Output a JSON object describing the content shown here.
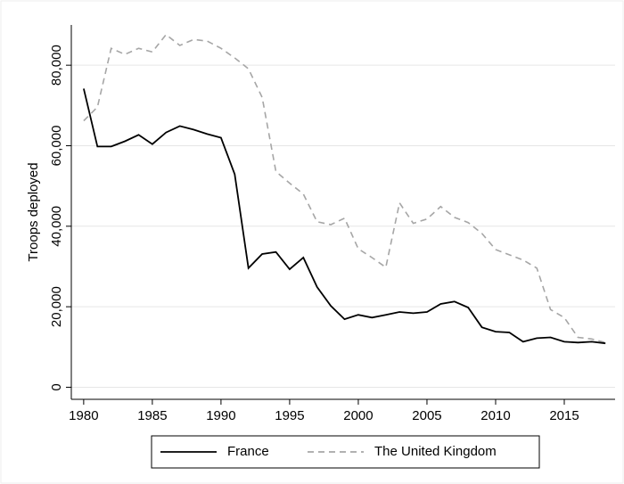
{
  "chart_data": {
    "type": "line",
    "y_label": "Troops deployed",
    "x": [
      1980,
      1981,
      1982,
      1983,
      1984,
      1985,
      1986,
      1987,
      1988,
      1989,
      1990,
      1991,
      1992,
      1993,
      1994,
      1995,
      1996,
      1997,
      1998,
      1999,
      2000,
      2001,
      2002,
      2003,
      2004,
      2005,
      2006,
      2007,
      2008,
      2009,
      2010,
      2011,
      2012,
      2013,
      2014,
      2015,
      2016,
      2017,
      2018
    ],
    "series": [
      {
        "name": "France",
        "color": "#000000",
        "dash": false,
        "values": [
          74200,
          59800,
          59800,
          61100,
          62700,
          60400,
          63300,
          64900,
          64000,
          62900,
          62000,
          52900,
          29600,
          33100,
          33600,
          29300,
          32200,
          24900,
          20200,
          16900,
          18000,
          17300,
          18000,
          18700,
          18400,
          18700,
          20700,
          21300,
          19800,
          14900,
          13800,
          13600,
          11300,
          12200,
          12400,
          11300,
          11100,
          11300,
          10900
        ]
      },
      {
        "name": "The United Kingdom",
        "color": "#a6a6a6",
        "dash": true,
        "values": [
          66200,
          69600,
          84200,
          82700,
          84200,
          83300,
          87600,
          84900,
          86400,
          86000,
          84200,
          81800,
          79100,
          72000,
          53600,
          50700,
          48000,
          41100,
          40400,
          42000,
          34400,
          32200,
          29800,
          45800,
          40700,
          41800,
          44900,
          42200,
          40900,
          38200,
          34200,
          32900,
          31600,
          29600,
          19300,
          17300,
          12400,
          12000,
          11100
        ]
      }
    ],
    "xlim": [
      1979.1,
      2018.7
    ],
    "xticks": [
      1980,
      1985,
      1990,
      1995,
      2000,
      2005,
      2010,
      2015
    ],
    "ylim": [
      -3000,
      90000
    ],
    "yticks": [
      0,
      {
        "value": 20000,
        "label": "20,000"
      },
      {
        "value": 40000,
        "label": "40,000"
      },
      {
        "value": 60000,
        "label": "60,000"
      },
      {
        "value": 80000,
        "label": "80,000"
      }
    ],
    "grid": true,
    "legend": "bottom"
  }
}
